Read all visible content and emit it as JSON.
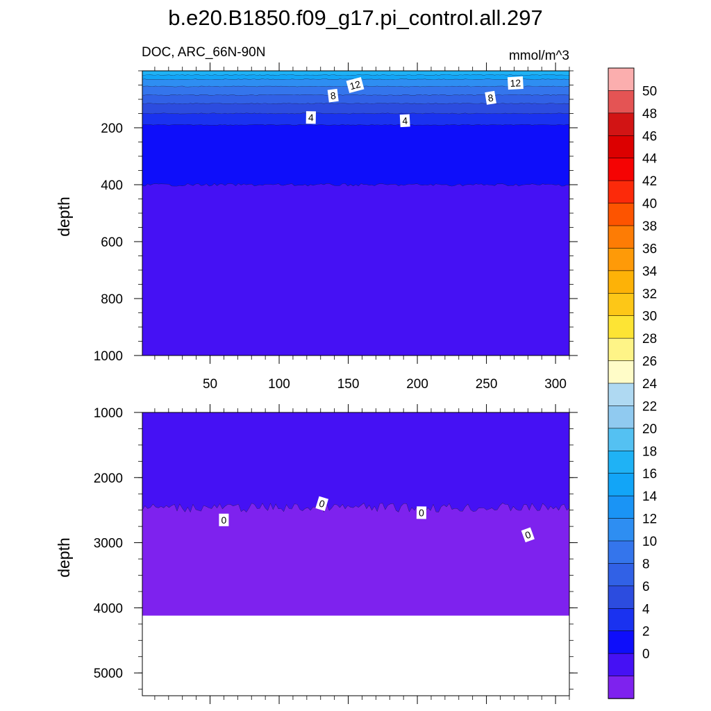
{
  "title": "b.e20.B1850.f09_g17.pi_control.all.297",
  "subtitle_left": "DOC, ARC_66N-90N",
  "subtitle_right": "mmol/m^3",
  "chart_data": [
    {
      "type": "heatmap",
      "panel": "upper",
      "ylabel": "depth",
      "xlim": [
        1,
        310
      ],
      "ylim": [
        1000,
        0
      ],
      "x_ticks": [
        "50",
        "100",
        "150",
        "200",
        "250",
        "300"
      ],
      "y_ticks": [
        "200",
        "400",
        "600",
        "800",
        "1000"
      ],
      "contour_labels": [
        {
          "text": "12",
          "x": 155,
          "y": 50
        },
        {
          "text": "12",
          "x": 271,
          "y": 43
        },
        {
          "text": "8",
          "x": 139,
          "y": 87
        },
        {
          "text": "8",
          "x": 253,
          "y": 95
        },
        {
          "text": "4",
          "x": 123,
          "y": 164
        },
        {
          "text": "4",
          "x": 191,
          "y": 175
        }
      ],
      "bands": [
        {
          "level_from": 16,
          "level_to": 18,
          "color": "#1fb2f5",
          "depth_top": 0,
          "depth_bottom": 15
        },
        {
          "level_from": 14,
          "level_to": 16,
          "color": "#12a5f7",
          "depth_top": 15,
          "depth_bottom": 30
        },
        {
          "level_from": 12,
          "level_to": 14,
          "color": "#2e8ef2",
          "depth_top": 30,
          "depth_bottom": 55
        },
        {
          "level_from": 10,
          "level_to": 12,
          "color": "#3475ec",
          "depth_top": 55,
          "depth_bottom": 85
        },
        {
          "level_from": 8,
          "level_to": 10,
          "color": "#3161e6",
          "depth_top": 85,
          "depth_bottom": 115
        },
        {
          "level_from": 6,
          "level_to": 8,
          "color": "#2c4cdf",
          "depth_top": 115,
          "depth_bottom": 150
        },
        {
          "level_from": 4,
          "level_to": 6,
          "color": "#1a32f0",
          "depth_top": 150,
          "depth_bottom": 190
        },
        {
          "level_from": 2,
          "level_to": 4,
          "color": "#0e0efa",
          "depth_top": 190,
          "depth_bottom": 400
        },
        {
          "level_from": 0,
          "level_to": 2,
          "color": "#4511f4",
          "depth_top": 400,
          "depth_bottom": 1000
        }
      ]
    },
    {
      "type": "heatmap",
      "panel": "lower",
      "ylabel": "depth",
      "xlim": [
        1,
        310
      ],
      "ylim": [
        5350,
        1000
      ],
      "y_ticks": [
        "1000",
        "2000",
        "3000",
        "4000",
        "5000"
      ],
      "contour_labels": [
        {
          "text": "0",
          "x": 60,
          "y": 2650
        },
        {
          "text": "0",
          "x": 131,
          "y": 2400
        },
        {
          "text": "0",
          "x": 203,
          "y": 2540
        },
        {
          "text": "0",
          "x": 280,
          "y": 2880
        }
      ],
      "bands": [
        {
          "level_from": 0,
          "level_to": 2,
          "color": "#4511f4",
          "depth_top": 1000,
          "depth_bottom": 2450
        },
        {
          "level_from": -2,
          "level_to": 0,
          "color": "#7e22ee",
          "depth_top": 2450,
          "depth_bottom": 4120
        }
      ],
      "missing_below_depth": 4120
    }
  ],
  "colorbar": {
    "labels": [
      "50",
      "48",
      "46",
      "44",
      "42",
      "40",
      "38",
      "36",
      "34",
      "32",
      "30",
      "28",
      "26",
      "24",
      "22",
      "20",
      "18",
      "16",
      "14",
      "12",
      "10",
      "8",
      "6",
      "4",
      "2",
      "0"
    ],
    "colors_top_to_bottom": [
      "#fbaeae",
      "#e45454",
      "#d21414",
      "#dc0000",
      "#f50303",
      "#fc2a0a",
      "#fd5400",
      "#fd7c05",
      "#fe9a08",
      "#fdb207",
      "#fdc717",
      "#fde434",
      "#fef487",
      "#fffcc8",
      "#afd9f2",
      "#90caf0",
      "#54c1f2",
      "#1fb2f5",
      "#12a5f7",
      "#1a94f5",
      "#2e8ef2",
      "#3475ec",
      "#3161e6",
      "#2c4cdf",
      "#1a32f0",
      "#0e0efa",
      "#4511f4",
      "#7e22ee"
    ]
  }
}
